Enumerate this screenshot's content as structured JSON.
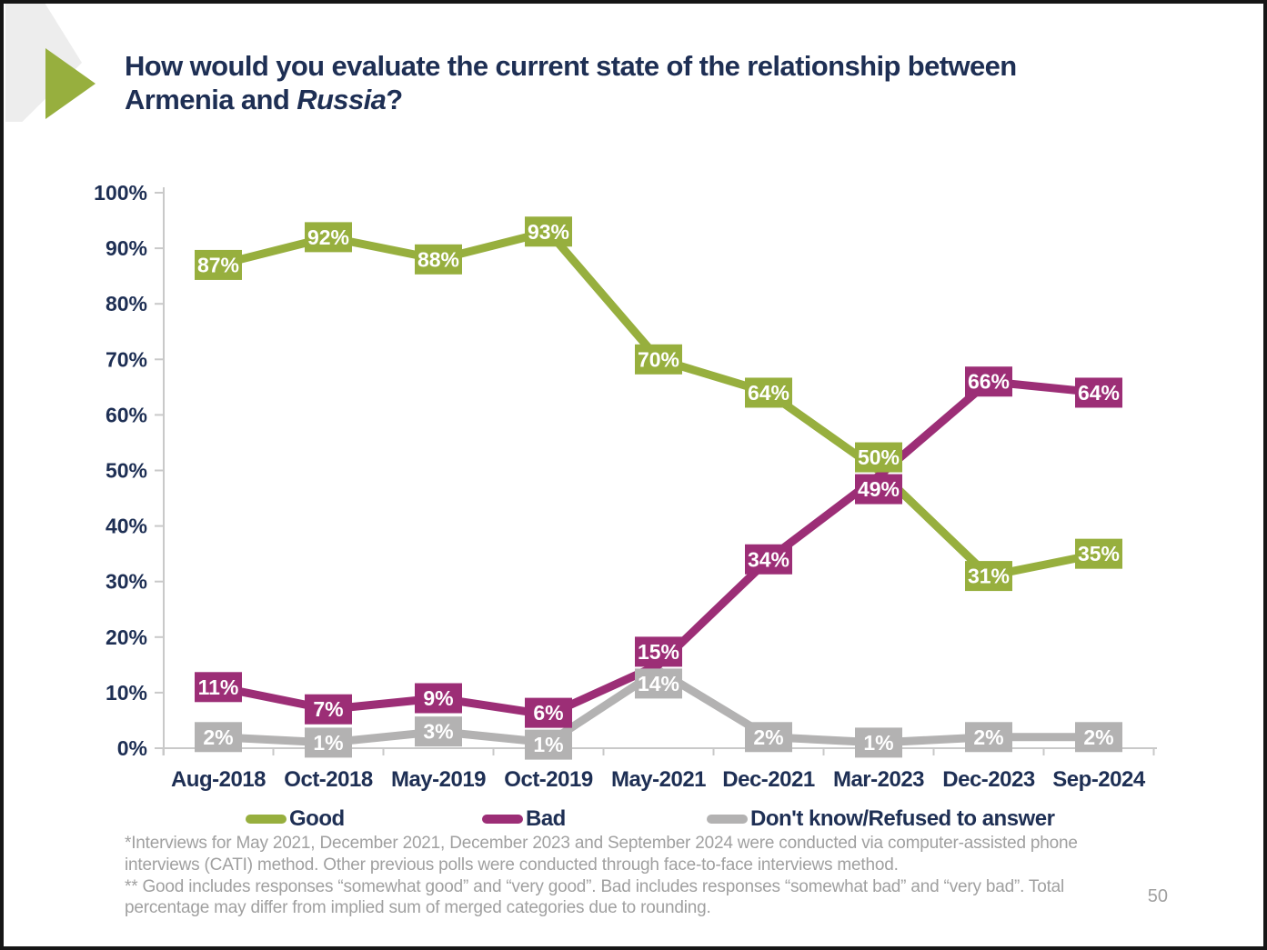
{
  "slide": {
    "title": {
      "main": "How would you evaluate the current state of the relationship between Armenia and ",
      "italic": "Russia",
      "suffix": "?"
    },
    "footnotes": [
      "*Interviews for May 2021, December 2021, December 2023 and September 2024 were conducted via computer-assisted phone interviews (CATI) method. Other previous polls were conducted through face-to-face interviews method.",
      "** Good includes responses “somewhat good” and “very good”. Bad includes responses “somewhat bad” and “very bad”. Total percentage may differ from implied sum of merged categories due to rounding."
    ],
    "page_number": "50"
  },
  "colors": {
    "navy": "#1E2F54",
    "green": "#97AF3E",
    "purple": "#9C2E76",
    "line_gray": "#B3B2B2",
    "axis_gray": "#C9C9C9",
    "footnote_gray": "#A0A0A0",
    "deco_gray": "#EDEDED",
    "border_dark": "#161616"
  },
  "chart_data": {
    "type": "line",
    "title": "How would you evaluate the current state of the relationship between Armenia and Russia?",
    "categories": [
      "Aug-2018",
      "Oct-2018",
      "May-2019",
      "Oct-2019",
      "May-2021",
      "Dec-2021",
      "Mar-2023",
      "Dec-2023",
      "Sep-2024"
    ],
    "series": [
      {
        "name": "Good",
        "color": "#97AF3E",
        "values": [
          87,
          92,
          88,
          93,
          70,
          64,
          50,
          31,
          35
        ]
      },
      {
        "name": "Bad",
        "color": "#9C2E76",
        "values": [
          11,
          7,
          9,
          6,
          15,
          34,
          49,
          66,
          64
        ]
      },
      {
        "name": "Don't know/Refused to answer",
        "color": "#B3B2B2",
        "values": [
          2,
          1,
          3,
          1,
          14,
          2,
          1,
          2,
          2
        ]
      }
    ],
    "y_ticks": [
      0,
      10,
      20,
      30,
      40,
      50,
      60,
      70,
      80,
      90,
      100
    ],
    "y_tick_suffix": "%",
    "data_label_suffix": "%",
    "xlabel": "",
    "ylabel": "",
    "ylim": [
      0,
      100
    ],
    "grid": false,
    "legend_position": "bottom"
  }
}
